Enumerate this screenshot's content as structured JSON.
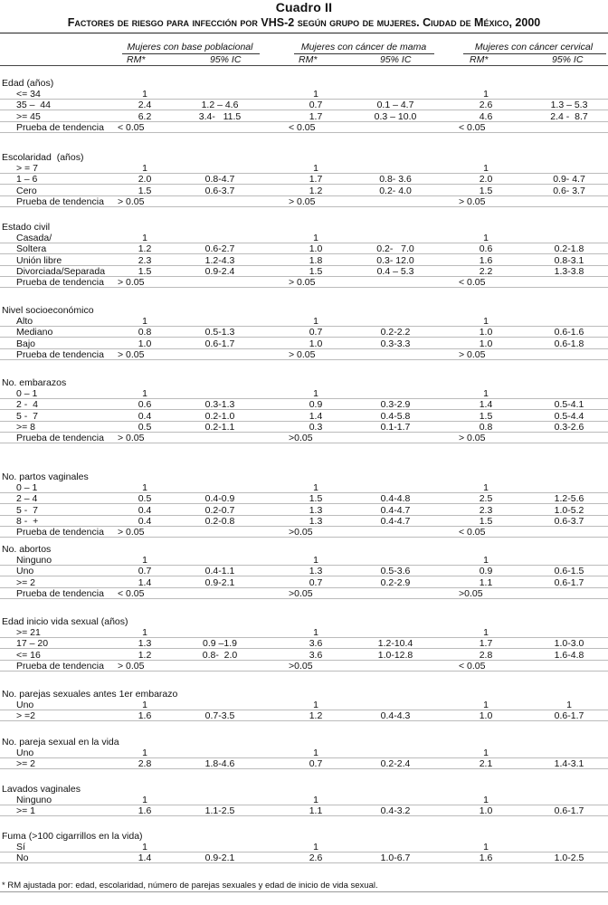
{
  "title": {
    "label": "Cuadro II",
    "subtitle": "Factores de riesgo para infección por VHS-2 según grupo de mujeres. Ciudad de México, 2000"
  },
  "groups": [
    "Mujeres con base poblacional",
    "Mujeres con cáncer de mama",
    "Mujeres con cáncer cervical"
  ],
  "col_rm": "RM*",
  "col_ic": "95% IC",
  "sections": [
    {
      "title": "Edad (años)",
      "rows": [
        {
          "label": "<= 34",
          "v": [
            "1",
            "",
            "1",
            "",
            "1",
            ""
          ]
        },
        {
          "label": "35 –  44",
          "v": [
            "2.4",
            "1.2 – 4.6",
            "0.7",
            "0.1 – 4.7",
            "2.6",
            "1.3 – 5.3"
          ]
        },
        {
          "label": ">= 45",
          "v": [
            "6.2",
            "3.4-   11.5",
            "1.7",
            "0.3 – 10.0",
            "4.6",
            "2.4 -  8.7"
          ]
        },
        {
          "label": "Prueba de tendencia",
          "v": [
            "< 0.05",
            "",
            "< 0.05",
            "",
            "< 0.05",
            ""
          ],
          "trend": true
        }
      ]
    },
    {
      "title": "Escolaridad  (años)",
      "rows": [
        {
          "label": "> = 7",
          "v": [
            "1",
            "",
            "1",
            "",
            "1",
            ""
          ]
        },
        {
          "label": "1 – 6",
          "v": [
            "2.0",
            "0.8-4.7",
            "1.7",
            "0.8- 3.6",
            "2.0",
            "0.9- 4.7"
          ]
        },
        {
          "label": "Cero",
          "v": [
            "1.5",
            "0.6-3.7",
            "1.2",
            "0.2- 4.0",
            "1.5",
            "0.6- 3.7"
          ]
        },
        {
          "label": "Prueba de tendencia",
          "v": [
            "> 0.05",
            "",
            "> 0.05",
            "",
            "> 0.05",
            ""
          ],
          "trend": true
        }
      ]
    },
    {
      "title": "Estado civil",
      "rows": [
        {
          "label": "Casada/",
          "v": [
            "1",
            "",
            "1",
            "",
            "1",
            ""
          ]
        },
        {
          "label": "Soltera",
          "v": [
            "1.2",
            "0.6-2.7",
            "1.0",
            "0.2-   7.0",
            "0.6",
            "0.2-1.8"
          ]
        },
        {
          "label": "Unión libre",
          "v": [
            "2.3",
            "1.2-4.3",
            "1.8",
            "0.3- 12.0",
            "1.6",
            "0.8-3.1"
          ]
        },
        {
          "label": "Divorciada/Separada",
          "v": [
            "1.5",
            "0.9-2.4",
            "1.5",
            "0.4 – 5.3",
            "2.2",
            "1.3-3.8"
          ]
        },
        {
          "label": "Prueba de tendencia",
          "v": [
            "> 0.05",
            "",
            "> 0.05",
            "",
            "< 0.05",
            ""
          ],
          "trend": true
        }
      ]
    },
    {
      "title": "Nivel socioeconómico",
      "rows": [
        {
          "label": "Alto",
          "v": [
            "1",
            "",
            "1",
            "",
            "1",
            ""
          ]
        },
        {
          "label": "Mediano",
          "v": [
            "0.8",
            "0.5-1.3",
            "0.7",
            "0.2-2.2",
            "1.0",
            "0.6-1.6"
          ]
        },
        {
          "label": "Bajo",
          "v": [
            "1.0",
            "0.6-1.7",
            "1.0",
            "0.3-3.3",
            "1.0",
            "0.6-1.8"
          ]
        },
        {
          "label": "Prueba de tendencia",
          "v": [
            "> 0.05",
            "",
            "> 0.05",
            "",
            "> 0.05",
            ""
          ],
          "trend": true
        }
      ]
    },
    {
      "title": "No. embarazos",
      "rows": [
        {
          "label": "0 – 1",
          "v": [
            "1",
            "",
            "1",
            "",
            "1",
            ""
          ]
        },
        {
          "label": "2 -  4",
          "v": [
            "0.6",
            "0.3-1.3",
            "0.9",
            "0.3-2.9",
            "1.4",
            "0.5-4.1"
          ]
        },
        {
          "label": "5 -  7",
          "v": [
            "0.4",
            "0.2-1.0",
            "1.4",
            "0.4-5.8",
            "1.5",
            "0.5-4.4"
          ]
        },
        {
          "label": ">= 8",
          "v": [
            "0.5",
            "0.2-1.1",
            "0.3",
            "0.1-1.7",
            "0.8",
            "0.3-2.6"
          ]
        },
        {
          "label": "Prueba de tendencia",
          "v": [
            "> 0.05",
            "",
            ">0.05",
            "",
            "> 0.05",
            ""
          ],
          "trend": true
        }
      ]
    },
    {
      "title": "No. partos vaginales",
      "rows": [
        {
          "label": "0 – 1",
          "v": [
            "1",
            "",
            "1",
            "",
            "1",
            ""
          ]
        },
        {
          "label": "2 – 4",
          "v": [
            "0.5",
            "0.4-0.9",
            "1.5",
            "0.4-4.8",
            "2.5",
            "1.2-5.6"
          ]
        },
        {
          "label": "5 -  7",
          "v": [
            "0.4",
            "0.2-0.7",
            "1.3",
            "0.4-4.7",
            "2.3",
            "1.0-5.2"
          ]
        },
        {
          "label": "8 -  +",
          "v": [
            "0.4",
            "0.2-0.8",
            "1.3",
            "0.4-4.7",
            "1.5",
            "0.6-3.7"
          ]
        },
        {
          "label": "Prueba de tendencia",
          "v": [
            "> 0.05",
            "",
            ">0.05",
            "",
            "< 0.05",
            ""
          ],
          "trend": true
        }
      ]
    },
    {
      "title": "No. abortos",
      "rows": [
        {
          "label": "Ninguno",
          "v": [
            "1",
            "",
            "1",
            "",
            "1",
            ""
          ]
        },
        {
          "label": "Uno",
          "v": [
            "0.7",
            "0.4-1.1",
            "1.3",
            "0.5-3.6",
            "0.9",
            "0.6-1.5"
          ]
        },
        {
          "label": ">= 2",
          "v": [
            "1.4",
            "0.9-2.1",
            "0.7",
            "0.2-2.9",
            "1.1",
            "0.6-1.7"
          ]
        },
        {
          "label": "Prueba de tendencia",
          "v": [
            "< 0.05",
            "",
            ">0.05",
            "",
            ">0.05",
            ""
          ],
          "trend": true
        }
      ]
    },
    {
      "title": "Edad inicio vida sexual (años)",
      "rows": [
        {
          "label": ">= 21",
          "v": [
            "1",
            "",
            "1",
            "",
            "1",
            ""
          ]
        },
        {
          "label": "17 – 20",
          "v": [
            "1.3",
            "0.9 –1.9",
            "3.6",
            "1.2-10.4",
            "1.7",
            "1.0-3.0"
          ]
        },
        {
          "label": "<= 16",
          "v": [
            "1.2",
            "0.8-  2.0",
            "3.6",
            "1.0-12.8",
            "2.8",
            "1.6-4.8"
          ]
        },
        {
          "label": "Prueba de tendencia",
          "v": [
            "> 0.05",
            "",
            ">0.05",
            "",
            "< 0.05",
            ""
          ],
          "trend": true
        }
      ]
    },
    {
      "title": "No. parejas sexuales antes 1er embarazo",
      "rows": [
        {
          "label": "Uno",
          "v": [
            "1",
            "",
            "1",
            "",
            "1",
            "1"
          ]
        },
        {
          "label": "> =2",
          "v": [
            "1.6",
            "0.7-3.5",
            "1.2",
            "0.4-4.3",
            "1.0",
            "0.6-1.7"
          ]
        }
      ]
    },
    {
      "title": "No. pareja sexual en la vida",
      "rows": [
        {
          "label": "Uno",
          "v": [
            "1",
            "",
            "1",
            "",
            "1",
            ""
          ]
        },
        {
          "label": ">= 2",
          "v": [
            "2.8",
            "1.8-4.6",
            "0.7",
            "0.2-2.4",
            "2.1",
            "1.4-3.1"
          ]
        }
      ]
    },
    {
      "title": "Lavados vaginales",
      "rows": [
        {
          "label": "Ninguno",
          "v": [
            "1",
            "",
            "1",
            "",
            "1",
            ""
          ]
        },
        {
          "label": ">= 1",
          "v": [
            "1.6",
            "1.1-2.5",
            "1.1",
            "0.4-3.2",
            "1.0",
            "0.6-1.7"
          ]
        }
      ]
    },
    {
      "title": "Fuma (>100 cigarrillos en la vida)",
      "rows": [
        {
          "label": "Sí",
          "v": [
            "1",
            "",
            "1",
            "",
            "1",
            ""
          ]
        },
        {
          "label": "No",
          "v": [
            "1.4",
            "0.9-2.1",
            "2.6",
            "1.0-6.7",
            "1.6",
            "1.0-2.5"
          ]
        }
      ]
    }
  ],
  "footnote": "* RM ajustada por: edad,  escolaridad, número de parejas sexuales y edad de inicio de vida sexual."
}
